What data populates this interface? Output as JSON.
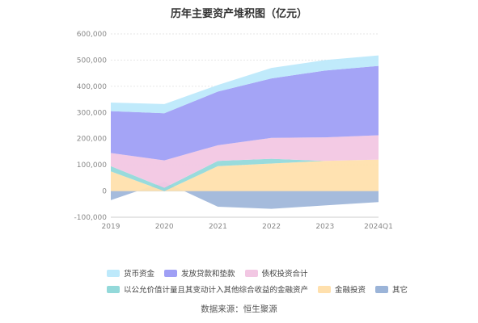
{
  "chart_data": {
    "type": "area",
    "title": "历年主要资产堆积图（亿元）",
    "categories": [
      "2019",
      "2020",
      "2021",
      "2022",
      "2023",
      "2024Q1"
    ],
    "ylim": [
      -100000,
      600000
    ],
    "yticks": [
      "600,000",
      "500,000",
      "400,000",
      "300,000",
      "200,000",
      "100,000",
      "0",
      "-100,000"
    ],
    "ytick_values": [
      600000,
      500000,
      400000,
      300000,
      200000,
      100000,
      0,
      -100000
    ],
    "grid": true,
    "legend_position": "bottom",
    "series": [
      {
        "name": "其它",
        "color": "#9bb4d8",
        "values": [
          -35000,
          35000,
          -60000,
          -68000,
          -55000,
          -42000
        ]
      },
      {
        "name": "金融投资",
        "color": "#ffe0ad",
        "values": [
          75000,
          0,
          95000,
          105000,
          115000,
          120000
        ]
      },
      {
        "name": "以公允价值计量且其变动计入其他综合收益的金融资产",
        "color": "#93d9da",
        "values": [
          20000,
          12000,
          20000,
          18000,
          0,
          0
        ]
      },
      {
        "name": "债权投资合计",
        "color": "#f2c7e3",
        "values": [
          50000,
          105000,
          60000,
          80000,
          90000,
          93000
        ]
      },
      {
        "name": "发放贷款和垫款",
        "color": "#9f9ff5",
        "values": [
          160000,
          180000,
          205000,
          227000,
          255000,
          265000
        ]
      },
      {
        "name": "货币资金",
        "color": "#bde9fb",
        "values": [
          33000,
          35000,
          25000,
          40000,
          40000,
          40000
        ]
      }
    ]
  },
  "legend": {
    "row1": [
      {
        "label": "货币资金",
        "color": "#bde9fb"
      },
      {
        "label": "发放贷款和垫款",
        "color": "#9f9ff5"
      },
      {
        "label": "债权投资合计",
        "color": "#f2c7e3"
      }
    ],
    "row2": [
      {
        "label": "以公允价值计量且其变动计入其他综合收益的金融资产",
        "color": "#93d9da"
      },
      {
        "label": "金融投资",
        "color": "#ffe0ad"
      },
      {
        "label": "其它",
        "color": "#9bb4d8"
      }
    ]
  },
  "source": "数据来源：恒生聚源"
}
